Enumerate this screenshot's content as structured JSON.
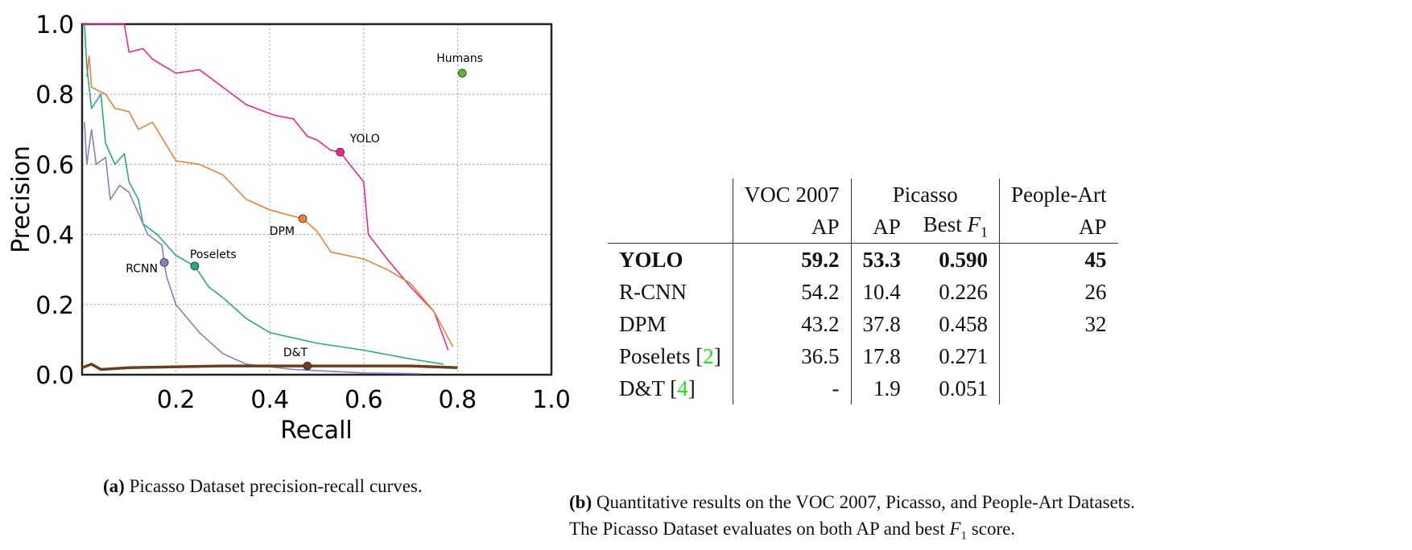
{
  "chart_data": {
    "type": "line",
    "xlabel": "Recall",
    "ylabel": "Precision",
    "xlim": [
      0,
      1.0
    ],
    "ylim": [
      0,
      1.0
    ],
    "xticks": [
      "0.2",
      "0.4",
      "0.6",
      "0.8",
      "1.0"
    ],
    "yticks": [
      "0.0",
      "0.2",
      "0.4",
      "0.6",
      "0.8",
      "1.0"
    ],
    "grid": true,
    "series": [
      {
        "name": "YOLO",
        "color": "#e7298a",
        "marker": [
          0.55,
          0.635
        ],
        "points": [
          [
            0,
            1
          ],
          [
            0.09,
            1
          ],
          [
            0.1,
            0.92
          ],
          [
            0.13,
            0.93
          ],
          [
            0.15,
            0.9
          ],
          [
            0.2,
            0.86
          ],
          [
            0.25,
            0.87
          ],
          [
            0.3,
            0.82
          ],
          [
            0.35,
            0.77
          ],
          [
            0.41,
            0.74
          ],
          [
            0.45,
            0.73
          ],
          [
            0.48,
            0.68
          ],
          [
            0.5,
            0.67
          ],
          [
            0.53,
            0.64
          ],
          [
            0.55,
            0.635
          ],
          [
            0.57,
            0.6
          ],
          [
            0.6,
            0.55
          ],
          [
            0.61,
            0.4
          ],
          [
            0.65,
            0.33
          ],
          [
            0.7,
            0.25
          ],
          [
            0.75,
            0.18
          ],
          [
            0.78,
            0.07
          ]
        ]
      },
      {
        "name": "DPM",
        "color": "#e6823a",
        "marker": [
          0.47,
          0.445
        ],
        "points": [
          [
            0.01,
            0.85
          ],
          [
            0.015,
            0.91
          ],
          [
            0.02,
            0.82
          ],
          [
            0.05,
            0.8
          ],
          [
            0.07,
            0.76
          ],
          [
            0.1,
            0.75
          ],
          [
            0.12,
            0.7
          ],
          [
            0.15,
            0.72
          ],
          [
            0.2,
            0.61
          ],
          [
            0.25,
            0.6
          ],
          [
            0.3,
            0.57
          ],
          [
            0.35,
            0.5
          ],
          [
            0.4,
            0.47
          ],
          [
            0.47,
            0.445
          ],
          [
            0.5,
            0.41
          ],
          [
            0.53,
            0.35
          ],
          [
            0.6,
            0.33
          ],
          [
            0.65,
            0.3
          ],
          [
            0.7,
            0.26
          ],
          [
            0.75,
            0.18
          ],
          [
            0.79,
            0.08
          ]
        ]
      },
      {
        "name": "Poselets",
        "color": "#2aa97c",
        "marker": [
          0.24,
          0.31
        ],
        "points": [
          [
            0.005,
            1.0
          ],
          [
            0.01,
            0.88
          ],
          [
            0.02,
            0.76
          ],
          [
            0.04,
            0.8
          ],
          [
            0.05,
            0.66
          ],
          [
            0.07,
            0.6
          ],
          [
            0.09,
            0.63
          ],
          [
            0.1,
            0.55
          ],
          [
            0.12,
            0.5
          ],
          [
            0.13,
            0.43
          ],
          [
            0.16,
            0.4
          ],
          [
            0.2,
            0.34
          ],
          [
            0.24,
            0.31
          ],
          [
            0.27,
            0.25
          ],
          [
            0.3,
            0.22
          ],
          [
            0.35,
            0.16
          ],
          [
            0.4,
            0.12
          ],
          [
            0.5,
            0.09
          ],
          [
            0.6,
            0.07
          ],
          [
            0.7,
            0.045
          ],
          [
            0.77,
            0.03
          ]
        ]
      },
      {
        "name": "RCNN",
        "color": "#8580c0",
        "marker": [
          0.175,
          0.32
        ],
        "points": [
          [
            0.005,
            0.72
          ],
          [
            0.01,
            0.6
          ],
          [
            0.02,
            0.7
          ],
          [
            0.03,
            0.6
          ],
          [
            0.05,
            0.62
          ],
          [
            0.06,
            0.5
          ],
          [
            0.08,
            0.54
          ],
          [
            0.1,
            0.52
          ],
          [
            0.12,
            0.46
          ],
          [
            0.14,
            0.4
          ],
          [
            0.17,
            0.37
          ],
          [
            0.175,
            0.32
          ],
          [
            0.18,
            0.28
          ],
          [
            0.2,
            0.2
          ],
          [
            0.25,
            0.12
          ],
          [
            0.3,
            0.06
          ],
          [
            0.35,
            0.03
          ],
          [
            0.45,
            0.015
          ],
          [
            0.6,
            0.005
          ],
          [
            0.72,
            0.003
          ]
        ]
      },
      {
        "name": "D&T",
        "color": "#6b3e1c",
        "marker": [
          0.48,
          0.025
        ],
        "points": [
          [
            0,
            0.02
          ],
          [
            0.02,
            0.03
          ],
          [
            0.04,
            0.015
          ],
          [
            0.1,
            0.02
          ],
          [
            0.3,
            0.025
          ],
          [
            0.5,
            0.025
          ],
          [
            0.7,
            0.025
          ],
          [
            0.8,
            0.02
          ]
        ]
      },
      {
        "name": "Humans",
        "color": "#6aae3c",
        "marker": [
          0.81,
          0.86
        ],
        "points": []
      }
    ]
  },
  "caption_a": {
    "label": "(a)",
    "text": " Picasso Dataset precision-recall curves."
  },
  "caption_b": {
    "label": "(b)",
    "line1": " Quantitative results on the VOC 2007, Picasso, and People-Art Datasets.",
    "line2a": "The Picasso Dataset evaluates on both AP and best ",
    "line2b": "F",
    "line2c": "1",
    "line2d": " score."
  },
  "table": {
    "groups": [
      "VOC 2007",
      "Picasso",
      "People-Art"
    ],
    "subheaders": [
      "AP",
      "AP",
      "Best ",
      "F",
      "1",
      "AP"
    ],
    "rows": [
      {
        "name": "YOLO",
        "ref": "",
        "voc_ap": "59.2",
        "picasso_ap": "53.3",
        "picasso_f1": "0.590",
        "peopleart_ap": "45"
      },
      {
        "name": "R-CNN",
        "ref": "",
        "voc_ap": "54.2",
        "picasso_ap": "10.4",
        "picasso_f1": "0.226",
        "peopleart_ap": "26"
      },
      {
        "name": "DPM",
        "ref": "",
        "voc_ap": "43.2",
        "picasso_ap": "37.8",
        "picasso_f1": "0.458",
        "peopleart_ap": "32"
      },
      {
        "name": "Poselets ",
        "ref": "2",
        "voc_ap": "36.5",
        "picasso_ap": "17.8",
        "picasso_f1": "0.271",
        "peopleart_ap": ""
      },
      {
        "name": "D&T ",
        "ref": "4",
        "voc_ap": "-",
        "picasso_ap": "1.9",
        "picasso_f1": "0.051",
        "peopleart_ap": ""
      }
    ]
  }
}
